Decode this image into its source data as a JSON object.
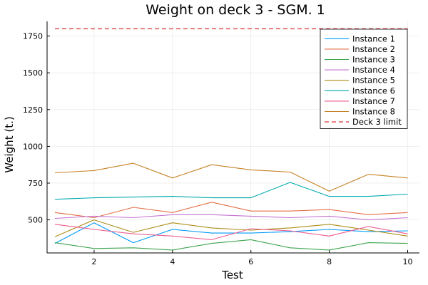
{
  "chart_data": {
    "type": "line",
    "title": "Weight on deck 3 - SGM. 1",
    "xlabel": "Test",
    "ylabel": "Weight (t.)",
    "x": [
      1,
      2,
      3,
      4,
      5,
      6,
      7,
      8,
      9,
      10
    ],
    "xlim": [
      0.8,
      10.3
    ],
    "ylim": [
      275,
      1850
    ],
    "xticks": [
      2,
      4,
      6,
      8,
      10
    ],
    "yticks": [
      500,
      750,
      1000,
      1250,
      1500,
      1750
    ],
    "grid": true,
    "legend_position": "top-right",
    "series": [
      {
        "name": "Instance 1",
        "color": "#009AFA",
        "dash": "solid",
        "values": [
          340,
          480,
          345,
          435,
          410,
          410,
          420,
          435,
          420,
          425
        ]
      },
      {
        "name": "Instance 2",
        "color": "#E36F47",
        "dash": "solid",
        "values": [
          550,
          515,
          585,
          550,
          620,
          560,
          560,
          570,
          535,
          550
        ]
      },
      {
        "name": "Instance 3",
        "color": "#3EA44E",
        "dash": "solid",
        "values": [
          345,
          305,
          310,
          295,
          340,
          365,
          310,
          295,
          345,
          340
        ]
      },
      {
        "name": "Instance 4",
        "color": "#C371D2",
        "dash": "solid",
        "values": [
          510,
          525,
          515,
          535,
          535,
          525,
          515,
          525,
          500,
          515
        ]
      },
      {
        "name": "Instance 5",
        "color": "#AC8D18",
        "dash": "solid",
        "values": [
          385,
          500,
          415,
          480,
          445,
          430,
          445,
          470,
          430,
          390
        ]
      },
      {
        "name": "Instance 6",
        "color": "#00A9AD",
        "dash": "solid",
        "values": [
          640,
          650,
          655,
          660,
          650,
          650,
          755,
          660,
          660,
          675
        ]
      },
      {
        "name": "Instance 7",
        "color": "#ED5D92",
        "dash": "solid",
        "values": [
          470,
          435,
          405,
          390,
          365,
          440,
          425,
          390,
          455,
          405
        ]
      },
      {
        "name": "Instance 8",
        "color": "#C68225",
        "dash": "solid",
        "values": [
          820,
          835,
          885,
          785,
          875,
          840,
          825,
          695,
          810,
          785
        ]
      },
      {
        "name": "Deck 3 limit",
        "color": "#E26060",
        "dash": "dashed",
        "values": [
          1800,
          1800,
          1800,
          1800,
          1800,
          1800,
          1800,
          1800,
          1800,
          1800
        ]
      }
    ]
  }
}
